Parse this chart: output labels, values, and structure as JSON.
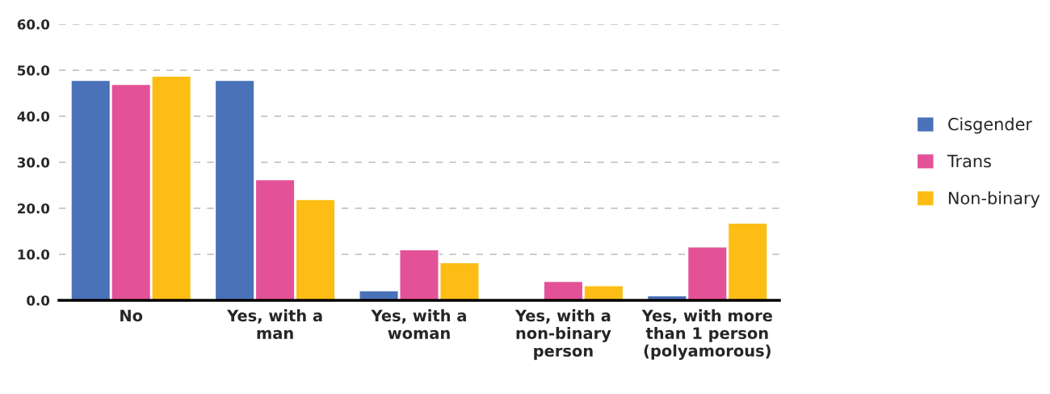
{
  "chart_data": {
    "type": "bar",
    "categories": [
      "No",
      "Yes, with a\nman",
      "Yes, with a\nwoman",
      "Yes, with a\nnon-binary\nperson",
      "Yes, with more\nthan 1 person\n(polyamorous)"
    ],
    "series": [
      {
        "name": "Cisgender",
        "color": "#4a72b8",
        "values": [
          47.8,
          47.8,
          2.1,
          null,
          1.0
        ]
      },
      {
        "name": "Trans",
        "color": "#e35297",
        "values": [
          46.9,
          26.2,
          11.0,
          4.1,
          11.6
        ]
      },
      {
        "name": "Non-binary",
        "color": "#fdbd14",
        "values": [
          48.7,
          21.9,
          8.2,
          3.2,
          16.8
        ]
      }
    ],
    "ylim": [
      0,
      60
    ],
    "yticks": [
      {
        "value": 0,
        "label": "0.0"
      },
      {
        "value": 10,
        "label": "10.0"
      },
      {
        "value": 20,
        "label": "20.0"
      },
      {
        "value": 30,
        "label": "30.0"
      },
      {
        "value": 40,
        "label": "40.0"
      },
      {
        "value": 50,
        "label": "50.0"
      },
      {
        "value": 60,
        "label": "60.0"
      }
    ],
    "grid": "y",
    "legend": "right"
  }
}
